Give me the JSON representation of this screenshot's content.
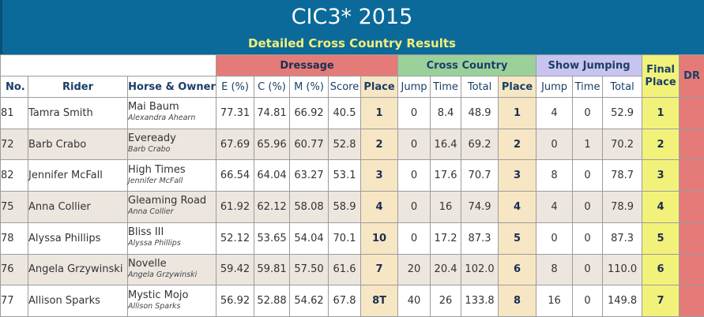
{
  "header": {
    "title": "CIC3* 2015",
    "subtitle": "Detailed Cross Country Results"
  },
  "groups": {
    "dressage": "Dressage",
    "cross_country": "Cross Country",
    "show_jumping": "Show Jumping",
    "final_place": "Final Place",
    "dr": "DR"
  },
  "columns": {
    "no": "No.",
    "rider": "Rider",
    "horse_owner": "Horse & Owner",
    "e": "E (%)",
    "c": "C (%)",
    "m": "M (%)",
    "score": "Score",
    "d_place": "Place",
    "xc_jump": "Jump",
    "xc_time": "Time",
    "xc_total": "Total",
    "xc_place": "Place",
    "sj_jump": "Jump",
    "sj_time": "Time",
    "sj_total": "Total"
  },
  "rows": [
    {
      "no": "81",
      "rider": "Tamra Smith",
      "horse": "Mai Baum",
      "owner": "Alexandra Ahearn",
      "e": "77.31",
      "c": "74.81",
      "m": "66.92",
      "score": "40.5",
      "d_place": "1",
      "xc_jump": "0",
      "xc_time": "8.4",
      "xc_total": "48.9",
      "xc_place": "1",
      "sj_jump": "4",
      "sj_time": "0",
      "sj_total": "52.9",
      "final": "1"
    },
    {
      "no": "72",
      "rider": "Barb Crabo",
      "horse": "Eveready",
      "owner": "Barb Crabo",
      "e": "67.69",
      "c": "65.96",
      "m": "60.77",
      "score": "52.8",
      "d_place": "2",
      "xc_jump": "0",
      "xc_time": "16.4",
      "xc_total": "69.2",
      "xc_place": "2",
      "sj_jump": "0",
      "sj_time": "1",
      "sj_total": "70.2",
      "final": "2"
    },
    {
      "no": "82",
      "rider": "Jennifer McFall",
      "horse": "High Times",
      "owner": "Jennifer McFall",
      "e": "66.54",
      "c": "64.04",
      "m": "63.27",
      "score": "53.1",
      "d_place": "3",
      "xc_jump": "0",
      "xc_time": "17.6",
      "xc_total": "70.7",
      "xc_place": "3",
      "sj_jump": "8",
      "sj_time": "0",
      "sj_total": "78.7",
      "final": "3"
    },
    {
      "no": "75",
      "rider": "Anna Collier",
      "horse": "Gleaming Road",
      "owner": "Anna Collier",
      "e": "61.92",
      "c": "62.12",
      "m": "58.08",
      "score": "58.9",
      "d_place": "4",
      "xc_jump": "0",
      "xc_time": "16",
      "xc_total": "74.9",
      "xc_place": "4",
      "sj_jump": "4",
      "sj_time": "0",
      "sj_total": "78.9",
      "final": "4"
    },
    {
      "no": "78",
      "rider": "Alyssa Phillips",
      "horse": "Bliss III",
      "owner": "Alyssa Phillips",
      "e": "52.12",
      "c": "53.65",
      "m": "54.04",
      "score": "70.1",
      "d_place": "10",
      "xc_jump": "0",
      "xc_time": "17.2",
      "xc_total": "87.3",
      "xc_place": "5",
      "sj_jump": "0",
      "sj_time": "0",
      "sj_total": "87.3",
      "final": "5"
    },
    {
      "no": "76",
      "rider": "Angela Grzywinski",
      "horse": "Novelle",
      "owner": "Angela Grzywinski",
      "e": "59.42",
      "c": "59.81",
      "m": "57.50",
      "score": "61.6",
      "d_place": "7",
      "xc_jump": "20",
      "xc_time": "20.4",
      "xc_total": "102.0",
      "xc_place": "6",
      "sj_jump": "8",
      "sj_time": "0",
      "sj_total": "110.0",
      "final": "6"
    },
    {
      "no": "77",
      "rider": "Allison Sparks",
      "horse": "Mystic Mojo",
      "owner": "Allison Sparks",
      "e": "56.92",
      "c": "52.88",
      "m": "54.62",
      "score": "67.8",
      "d_place": "8T",
      "xc_jump": "40",
      "xc_time": "26",
      "xc_total": "133.8",
      "xc_place": "8",
      "sj_jump": "16",
      "sj_time": "0",
      "sj_total": "149.8",
      "final": "7"
    }
  ],
  "colors": {
    "banner": "#0b6a99",
    "subtitle": "#f3ef7a",
    "dressage": "#e57b78",
    "cross_country": "#9bd09a",
    "show_jumping": "#c8c4f0",
    "final": "#f2f27b",
    "place_cell": "#f6e6c4",
    "alt_row": "#ece6df"
  }
}
